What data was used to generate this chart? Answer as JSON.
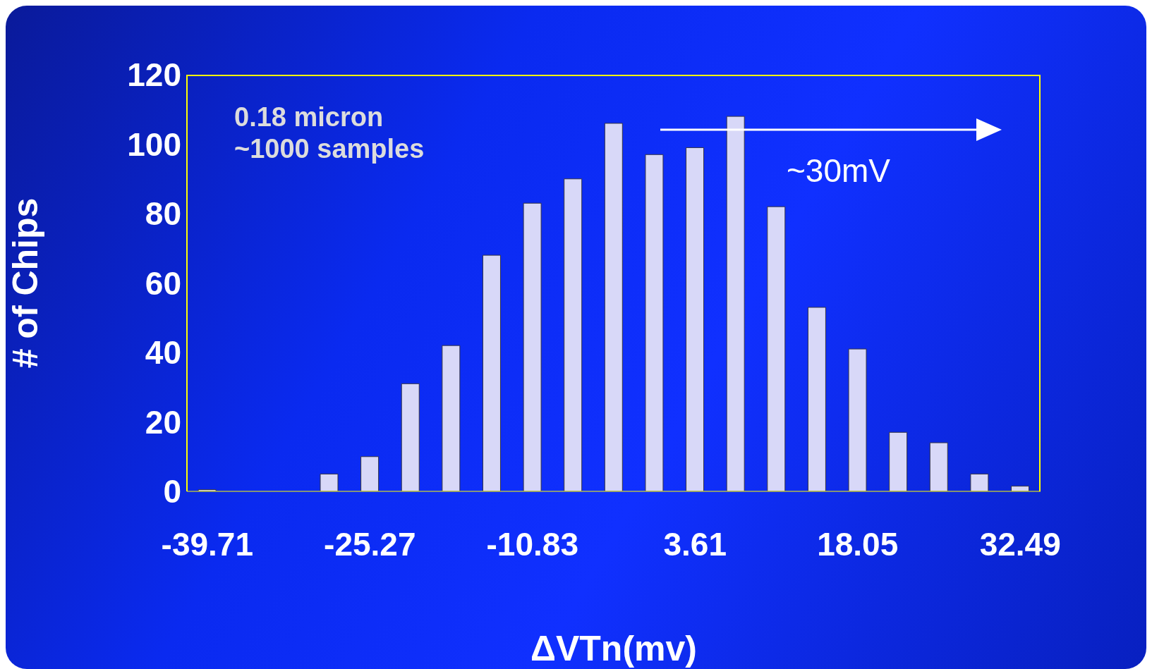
{
  "chart_data": {
    "type": "bar",
    "xlabel": "ΔVTn(mv)",
    "ylabel": "# of Chips",
    "categories": [
      "-39.71",
      null,
      null,
      null,
      "-25.27",
      null,
      null,
      null,
      "-10.83",
      null,
      null,
      null,
      "3.61",
      null,
      null,
      null,
      "18.05",
      null,
      null,
      null,
      "32.49"
    ],
    "values": [
      0.5,
      0,
      0,
      5,
      10,
      31,
      42,
      68,
      83,
      90,
      106,
      97,
      99,
      108,
      82,
      53,
      41,
      17,
      14,
      5,
      1.5
    ],
    "color": "#d8d8f8",
    "ylim": [
      0,
      120
    ],
    "yticks": [
      0,
      20,
      40,
      60,
      80,
      100,
      120
    ],
    "grid": false,
    "legend": false,
    "annotations": [
      "0.18 micron",
      "~1000 samples",
      "~30mV"
    ]
  }
}
